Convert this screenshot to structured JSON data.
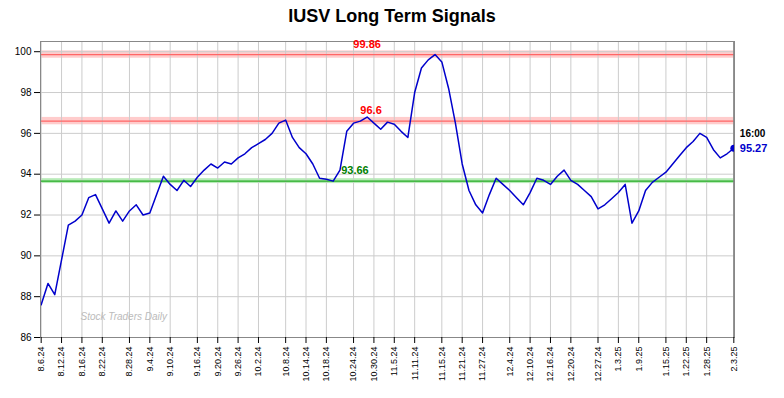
{
  "chart_data": {
    "type": "line",
    "title": "IUSV Long Term Signals",
    "watermark": "Stock Traders Daily",
    "color": "#0000cc",
    "categories": [
      "8.6.24",
      null,
      null,
      "8.12.24",
      null,
      null,
      "8.16.24",
      null,
      null,
      "8.22.24",
      null,
      null,
      null,
      "8.28.24",
      null,
      null,
      "9.4.24",
      null,
      null,
      "9.10.24",
      null,
      null,
      null,
      "9.16.24",
      null,
      null,
      "9.20.24",
      null,
      null,
      "9.26.24",
      null,
      null,
      "10.2.24",
      null,
      null,
      null,
      "10.8.24",
      null,
      null,
      "10.14.24",
      null,
      null,
      "10.18.24",
      null,
      null,
      null,
      "10.24.24",
      null,
      null,
      "10.30.24",
      null,
      null,
      "11.5.24",
      null,
      null,
      "11.11.24",
      null,
      null,
      null,
      "11.15.24",
      null,
      null,
      "11.21.24",
      null,
      null,
      "11.27.24",
      null,
      null,
      null,
      "12.4.24",
      null,
      null,
      "12.10.24",
      null,
      null,
      "12.16.24",
      null,
      null,
      "12.20.24",
      null,
      null,
      null,
      "12.27.24",
      null,
      null,
      "1.3.25",
      null,
      null,
      "1.9.25",
      null,
      null,
      null,
      "1.15.25",
      null,
      null,
      "1.22.25",
      null,
      null,
      "1.28.25",
      null,
      null,
      null,
      "2.3.25"
    ],
    "values": [
      87.6,
      88.65,
      88.1,
      89.8,
      91.5,
      91.7,
      92.0,
      92.85,
      93.0,
      92.3,
      91.6,
      92.2,
      91.7,
      92.2,
      92.5,
      92.0,
      92.1,
      93.0,
      93.9,
      93.5,
      93.2,
      93.7,
      93.4,
      93.85,
      94.2,
      94.5,
      94.3,
      94.6,
      94.5,
      94.8,
      95.0,
      95.3,
      95.5,
      95.7,
      96.0,
      96.5,
      96.65,
      95.8,
      95.3,
      95.0,
      94.5,
      93.8,
      93.75,
      93.66,
      94.2,
      96.1,
      96.5,
      96.6,
      96.8,
      96.5,
      96.2,
      96.55,
      96.45,
      96.1,
      95.8,
      98.0,
      99.2,
      99.6,
      99.86,
      99.5,
      98.2,
      96.5,
      94.5,
      93.2,
      92.5,
      92.1,
      93.0,
      93.8,
      93.5,
      93.2,
      92.85,
      92.5,
      93.1,
      93.8,
      93.7,
      93.5,
      93.9,
      94.2,
      93.7,
      93.5,
      93.2,
      92.9,
      92.3,
      92.5,
      92.8,
      93.1,
      93.5,
      91.6,
      92.2,
      93.2,
      93.6,
      93.85,
      94.1,
      94.5,
      94.9,
      95.3,
      95.6,
      96.0,
      95.8,
      95.2,
      94.8,
      95.0,
      95.27
    ],
    "horizontal_lines": [
      {
        "value": 99.86,
        "color": "#ff6666",
        "band": [
          99.68,
          100.04
        ],
        "band_color": "#ffaaaa",
        "label": "99.86",
        "label_color": "red"
      },
      {
        "value": 96.6,
        "color": "#ff6666",
        "band": [
          96.42,
          96.78
        ],
        "band_color": "#ffaaaa",
        "label": "96.6",
        "label_color": "red",
        "label_index": 47
      },
      {
        "value": 93.66,
        "color": "#22aa22",
        "band": [
          93.54,
          93.78
        ],
        "band_color": "#88dd88",
        "label": "93.66",
        "label_color": "green",
        "label_index": 43
      }
    ],
    "last_point": {
      "time_label": "16:00",
      "price_label": "95.27"
    },
    "ylim": [
      86,
      100.5
    ],
    "yticks": [
      86,
      88,
      90,
      92,
      94,
      96,
      98,
      100
    ],
    "grid": true
  }
}
